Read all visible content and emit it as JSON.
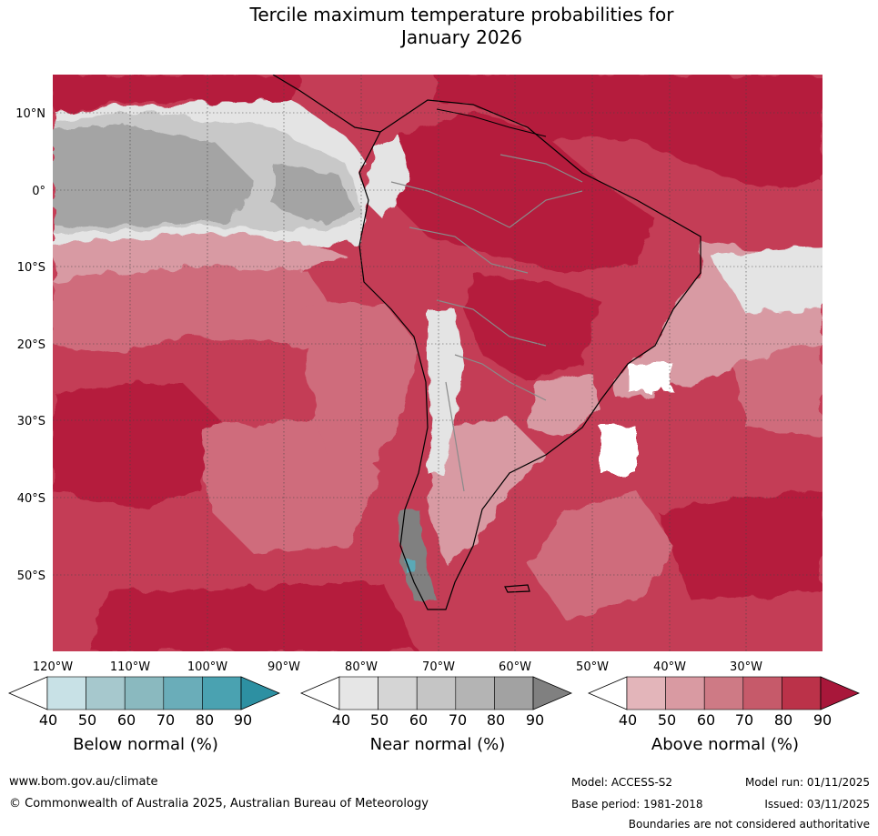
{
  "title": {
    "line1": "Tercile maximum temperature probabilities for",
    "line2": "January 2026"
  },
  "map": {
    "lat_labels": [
      "10°N",
      "0°",
      "10°S",
      "20°S",
      "30°S",
      "40°S",
      "50°S"
    ],
    "lon_labels": [
      "120°W",
      "110°W",
      "100°W",
      "90°W",
      "80°W",
      "70°W",
      "60°W",
      "50°W",
      "40°W",
      "30°W"
    ],
    "regions": {
      "ocean_background": "Above normal 80",
      "equatorial_pacific": "Near normal 60-90",
      "andes": "Near normal 50",
      "southern_patagonia": "Near normal 90 / Below normal 70",
      "northern_south_america": "Above normal 80-90"
    }
  },
  "colorbars": [
    {
      "name": "below",
      "label": "Below normal (%)",
      "ticks": [
        "40",
        "50",
        "60",
        "70",
        "80",
        "90"
      ],
      "colors": [
        "#ffffff",
        "#c8e1e6",
        "#a6c8cd",
        "#8ab9bf",
        "#6aadb9",
        "#4aa2b1",
        "#2d90a2"
      ]
    },
    {
      "name": "near",
      "label": "Near normal (%)",
      "ticks": [
        "40",
        "50",
        "60",
        "70",
        "80",
        "90"
      ],
      "colors": [
        "#ffffff",
        "#e6e6e6",
        "#d5d5d5",
        "#c5c5c5",
        "#b4b4b4",
        "#a2a2a2",
        "#808080"
      ]
    },
    {
      "name": "above",
      "label": "Above normal (%)",
      "ticks": [
        "40",
        "50",
        "60",
        "70",
        "80",
        "90"
      ],
      "colors": [
        "#ffffff",
        "#e3b5ba",
        "#d99aa2",
        "#ce7a85",
        "#c65a6a",
        "#bb3249",
        "#a8173a"
      ]
    }
  ],
  "footer": {
    "website": "www.bom.gov.au/climate",
    "copyright": "© Commonwealth of Australia 2025, Australian Bureau of Meteorology",
    "model": "Model: ACCESS-S2",
    "base_period": "Base period: 1981-2018",
    "model_run": "Model run: 01/11/2025",
    "issued": "Issued: 03/11/2025",
    "boundaries": "Boundaries are not considered authoritative"
  },
  "colors": {
    "above_80": "#c43d56",
    "above_90": "#b51e3c",
    "above_70": "#cf6c7c",
    "above_60": "#d89aa3",
    "near_60": "#c8c8c8",
    "near_80": "#a4a4a4",
    "near_50": "#e4e4e4",
    "below_70": "#5aa9b6"
  }
}
